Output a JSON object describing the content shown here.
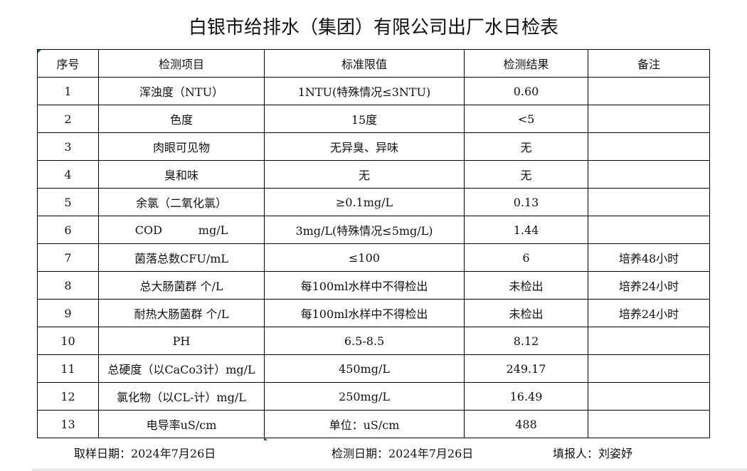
{
  "title": "白银市给排水（集团）有限公司出厂水日检表",
  "headers": [
    "序号",
    "检测项目",
    "标准限值",
    "检测结果",
    "备注"
  ],
  "rows": [
    [
      "1",
      "浑浊度（NTU）",
      "1NTU(特殊情况≤3NTU)",
      "0.60",
      ""
    ],
    [
      "2",
      "色度",
      "15度",
      "<5",
      ""
    ],
    [
      "3",
      "肉眼可见物",
      "无异臭、异味",
      "无",
      ""
    ],
    [
      "4",
      "臭和味",
      "无",
      "无",
      ""
    ],
    [
      "5",
      "余氯（二氧化氯）",
      "≥0.1mg/L",
      "0.13",
      ""
    ],
    [
      "6",
      "COD          mg/L",
      "3mg/L(特殊情况≤5mg/L)",
      "1.44",
      ""
    ],
    [
      "7",
      "菌落总数CFU/mL",
      "≤100",
      "6",
      "培养48小时"
    ],
    [
      "8",
      "总大肠菌群 个/L",
      "每100ml水样中不得检出",
      "未检出",
      "培养24小时"
    ],
    [
      "9",
      "耐热大肠菌群 个/L",
      "每100ml水样中不得检出",
      "未检出",
      "培养24小时"
    ],
    [
      "10",
      "PH",
      "6.5-8.5",
      "8.12",
      ""
    ],
    [
      "11",
      "总硬度（以CaCo3计）mg/L",
      "450mg/L",
      "249.17",
      ""
    ],
    [
      "12",
      "氯化物（以CL-计）mg/L",
      "250mg/L",
      "16.49",
      ""
    ],
    [
      "13",
      "电导率uS/cm",
      "单位：uS/cm",
      "488",
      ""
    ]
  ],
  "footer": {
    "sample_date": "取样日期：2024年7月26日",
    "test_date": "检测日期：2024年7月26日",
    "reporter": "填报人：刘姿妤"
  }
}
